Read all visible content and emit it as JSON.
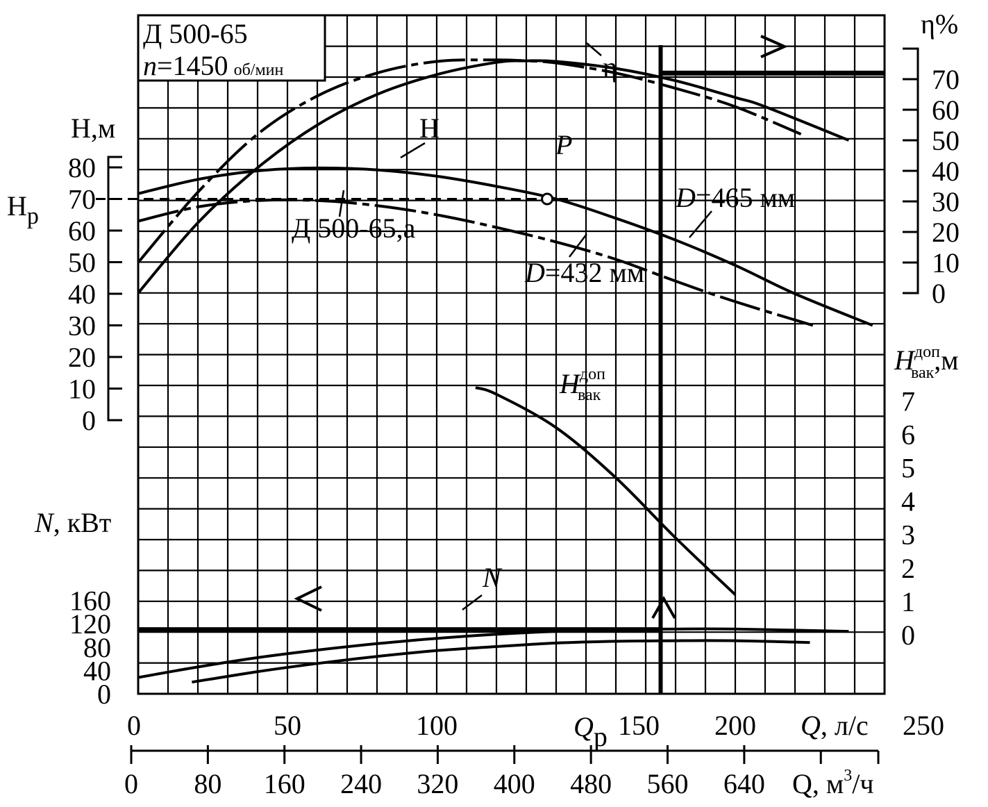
{
  "chart_data": {
    "type": "line",
    "title": "Д 500-65",
    "subtitle_n": "n",
    "subtitle_value": "=1450",
    "subtitle_unit": "об/мин",
    "head_axis": {
      "label": "Н,м",
      "label_pump": "Н",
      "label_pump_sub": "р",
      "ticks": [
        "0",
        "10",
        "20",
        "30",
        "40",
        "50",
        "60",
        "70",
        "80"
      ],
      "ylim": [
        0,
        85
      ]
    },
    "eff_axis": {
      "label": "η%",
      "ticks": [
        "0",
        "10",
        "20",
        "30",
        "40",
        "50",
        "60",
        "70"
      ],
      "ylim": [
        0,
        80
      ]
    },
    "npsh_axis": {
      "label_main": "H",
      "label_sup": "доп",
      "label_sub": "вак",
      "label_unit": ",м",
      "ticks": [
        "0",
        "1",
        "2",
        "3",
        "4",
        "5",
        "6",
        "7"
      ],
      "ylim": [
        0,
        8
      ]
    },
    "power_axis": {
      "label_italic": "N",
      "label_unit": ", кВт",
      "ticks": [
        "0",
        "40",
        "80",
        "120",
        "160"
      ],
      "ylim": [
        0,
        180
      ]
    },
    "x_axis": {
      "q_ls_ticks": [
        "0",
        "50",
        "100",
        "150",
        "200",
        "250"
      ],
      "q_ls_label_italic": "Q",
      "q_ls_label_unit": ", л/с",
      "qp_label": "Q",
      "qp_sub": "р",
      "q_m3h_ticks": [
        "0",
        "80",
        "160",
        "240",
        "320",
        "400",
        "480",
        "560",
        "640"
      ],
      "q_m3h_label": "Q, м",
      "q_m3h_sup": "3",
      "q_m3h_label_tail": "/ч",
      "xlim_ls": [
        0,
        250
      ]
    },
    "curve_labels": {
      "head": "Н",
      "head_trimmed": "Д 500-65,а",
      "d465_italic": "D",
      "d465": "=465 мм",
      "d432_italic": "D",
      "d432": "=432 мм",
      "eff": "η",
      "npsh_main": "H",
      "npsh_sup": "доп",
      "npsh_sub": "вак",
      "power": "N",
      "point": "P"
    },
    "series": [
      {
        "key": "H_465",
        "axis": "head",
        "style": "solid",
        "x": [
          0,
          20,
          40,
          60,
          80,
          100,
          120,
          140,
          160,
          180,
          200,
          220,
          246
        ],
        "y": [
          71.7,
          76.2,
          78.9,
          79.8,
          79.2,
          77.2,
          74.0,
          70.0,
          63.9,
          57.0,
          49.0,
          40.0,
          30.0
        ]
      },
      {
        "key": "H_432",
        "axis": "head",
        "style": "dashdot",
        "x": [
          0,
          20,
          40,
          60,
          80,
          100,
          120,
          140,
          160,
          180,
          200,
          226
        ],
        "y": [
          63.0,
          67.5,
          69.5,
          69.5,
          67.9,
          65.0,
          61.0,
          56.4,
          50.9,
          44.0,
          37.5,
          30.0
        ]
      },
      {
        "key": "eta_465",
        "axis": "efficiency",
        "style": "solid",
        "x": [
          0,
          20,
          40,
          60,
          80,
          100,
          120,
          130,
          140,
          160,
          180,
          200,
          210,
          238
        ],
        "y": [
          0,
          23.0,
          41.0,
          55.0,
          65.0,
          71.5,
          75.5,
          76.0,
          75.8,
          73.5,
          69.5,
          64.0,
          61.0,
          50.0
        ]
      },
      {
        "key": "eta_432",
        "axis": "efficiency",
        "style": "dashdot",
        "x": [
          0,
          20,
          40,
          60,
          80,
          100,
          120,
          130,
          140,
          160,
          180,
          200,
          222
        ],
        "y": [
          10.0,
          33.0,
          52.0,
          64.5,
          72.0,
          75.8,
          76.3,
          76.0,
          75.3,
          72.0,
          67.0,
          61.0,
          52.0
        ]
      },
      {
        "key": "npsh",
        "axis": "npsh",
        "style": "solid",
        "x": [
          113,
          120,
          140,
          160,
          180,
          200
        ],
        "y": [
          7.4,
          7.2,
          6.2,
          4.7,
          2.9,
          1.2
        ]
      },
      {
        "key": "N_465",
        "axis": "power",
        "style": "solid",
        "x": [
          0,
          20,
          40,
          60,
          80,
          100,
          120,
          140,
          160,
          180,
          200,
          238
        ],
        "y": [
          28.0,
          46.0,
          62.0,
          75.0,
          86.0,
          95.0,
          102.0,
          107.0,
          110.0,
          111.0,
          111.0,
          107.0
        ]
      },
      {
        "key": "N_432",
        "axis": "power",
        "style": "solid",
        "x": [
          18,
          40,
          60,
          80,
          100,
          120,
          140,
          160,
          180,
          200,
          225
        ],
        "y": [
          20.0,
          38.0,
          52.0,
          64.0,
          74.0,
          81.0,
          87.0,
          90.0,
          91.0,
          91.0,
          88.0
        ]
      }
    ],
    "operating_point": {
      "x": 137,
      "head": 70,
      "flow": 175,
      "efficiency": 72,
      "power": 110
    },
    "grid": true
  }
}
